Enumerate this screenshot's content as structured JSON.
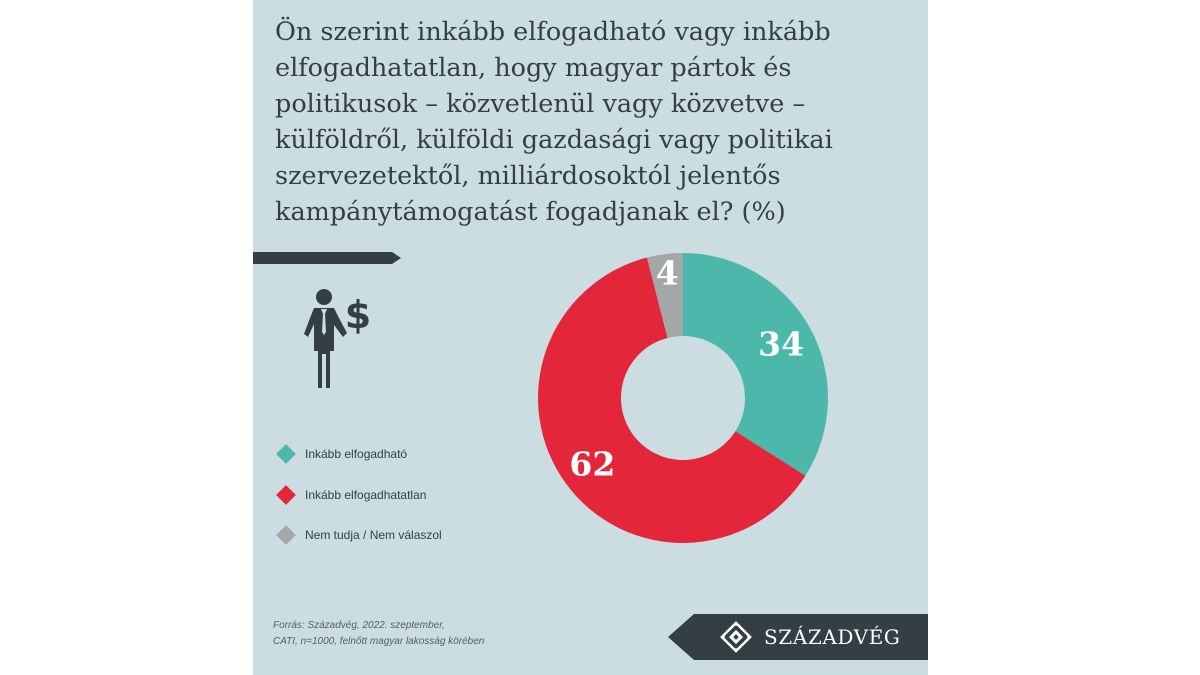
{
  "question": "Ön szerint inkább elfogadható vagy inkább elfogadhatatlan, hogy magyar pártok és politikusok – közvetlenül vagy közvetve – külföldről, külföldi gazdasági vagy politikai szervezetektől, milliárdosoktól jelentős kampánytámogatást fogadjanak el? (%)",
  "icon": "businessman-dollar-icon",
  "chart_data": {
    "type": "pie",
    "title": "Ön szerint inkább elfogadható vagy inkább elfogadhatatlan, hogy magyar pártok és politikusok – közvetlenül vagy közvetve – külföldről, külföldi gazdasági vagy politikai szervezetektől, milliárdosoktól jelentős kampánytámogatást fogadjanak el? (%)",
    "donut": true,
    "categories": [
      "Inkább elfogadható",
      "Inkább elfogadhatatlan",
      "Nem tudja / Nem válaszol"
    ],
    "values": [
      34,
      62,
      4
    ],
    "colors": [
      "#4cb8ab",
      "#e3263a",
      "#a3a7a8"
    ],
    "legend_position": "left"
  },
  "source": {
    "line1": "Forrás: Századvég, 2022. szeptember,",
    "line2": "CATI, n=1000, felnőtt magyar lakosság körében"
  },
  "brand": {
    "name": "SZÁZADVÉG",
    "logo_icon": "szazadveg-logo-icon"
  },
  "colors": {
    "background": "#ccdde1",
    "text": "#343f44"
  }
}
